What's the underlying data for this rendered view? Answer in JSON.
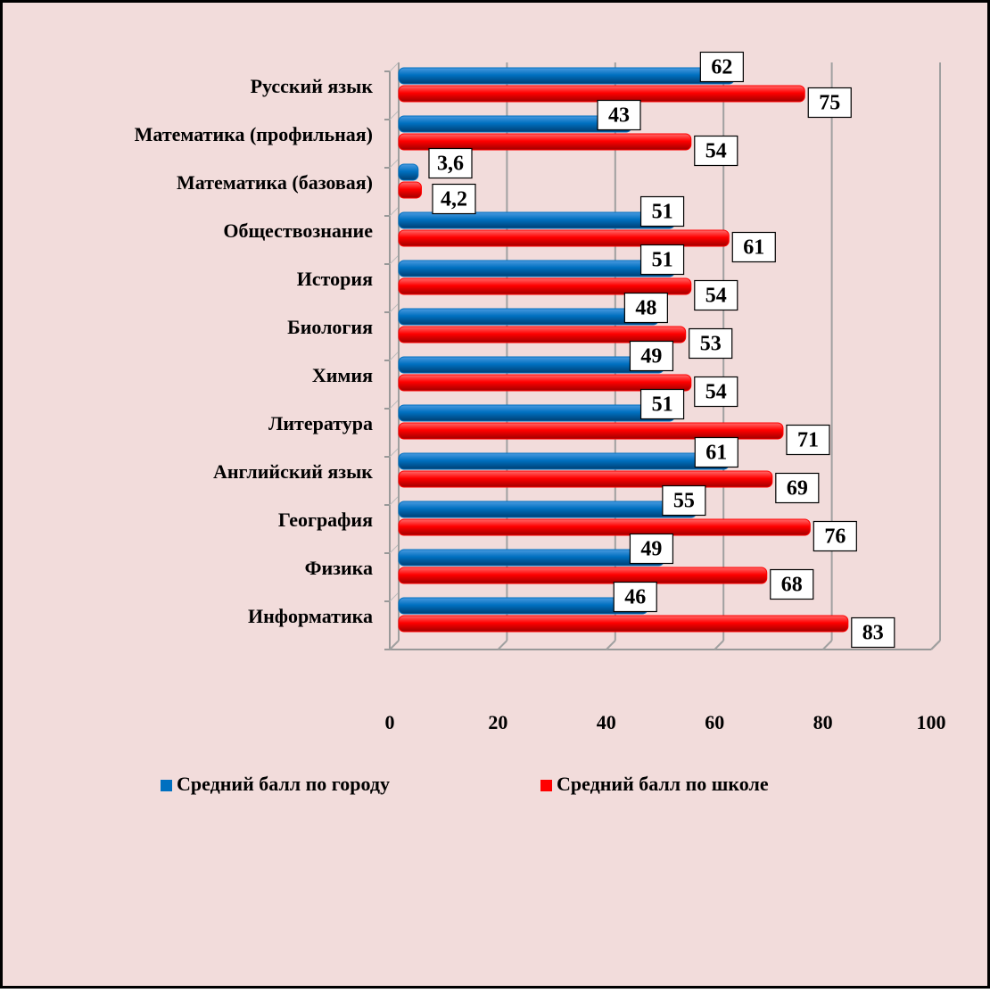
{
  "chart_data": {
    "type": "bar",
    "orientation": "horizontal",
    "categories": [
      "Русский язык",
      "Математика (профильная)",
      "Математика (базовая)",
      "Обществознание",
      "История",
      "Биология",
      "Химия",
      "Литература",
      "Английский язык",
      "География",
      "Физика",
      "Информатика"
    ],
    "series": [
      {
        "name": "Средний балл по городу",
        "color": "#0070c0",
        "values": [
          62,
          43,
          3.6,
          51,
          51,
          48,
          49,
          51,
          61,
          55,
          49,
          46
        ],
        "value_labels": [
          "62",
          "43",
          "3,6",
          "51",
          "51",
          "48",
          "49",
          "51",
          "61",
          "55",
          "49",
          "46"
        ]
      },
      {
        "name": "Средний балл по школе",
        "color": "#ff0000",
        "values": [
          75,
          54,
          4.2,
          61,
          54,
          53,
          54,
          71,
          69,
          76,
          68,
          83
        ],
        "value_labels": [
          "75",
          "54",
          "4,2",
          "61",
          "54",
          "53",
          "54",
          "71",
          "69",
          "76",
          "68",
          "83"
        ]
      }
    ],
    "xlim": [
      0,
      100
    ],
    "xticks": [
      0,
      20,
      40,
      60,
      80,
      100
    ],
    "grid": true,
    "legend": "bottom"
  }
}
